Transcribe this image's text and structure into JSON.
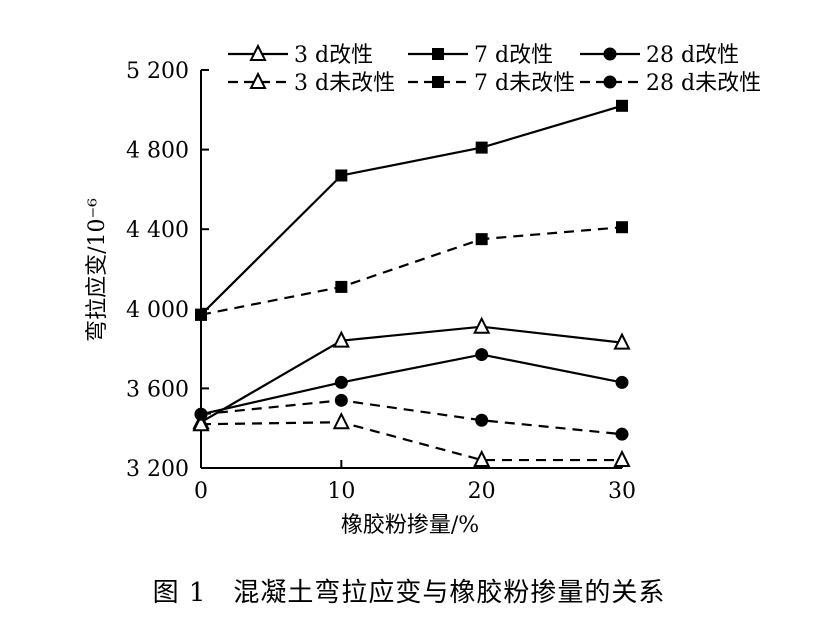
{
  "caption": "图 1　混凝土弯拉应变与橡胶粉掺量的关系",
  "chart_data": {
    "type": "line",
    "xlabel": "橡胶粉掺量/%",
    "ylabel": "弯拉应变/10⁻⁶",
    "x": [
      0,
      10,
      20,
      30
    ],
    "xticks": [
      "0",
      "10",
      "20",
      "30"
    ],
    "xlim": [
      0,
      30
    ],
    "yticks": [
      "3 200",
      "3 600",
      "4 000",
      "4 400",
      "4 800",
      "5 200"
    ],
    "ytick_values": [
      3200,
      3600,
      4000,
      4400,
      4800,
      5200
    ],
    "ylim": [
      3200,
      5200
    ],
    "grid": false,
    "legend_position": "top",
    "series": [
      {
        "name": "3 d改性",
        "values": [
          3430,
          3840,
          3910,
          3830
        ],
        "marker": "triangle",
        "dashed": false
      },
      {
        "name": "7 d改性",
        "values": [
          3970,
          4670,
          4810,
          5020
        ],
        "marker": "square",
        "dashed": false
      },
      {
        "name": "28 d改性",
        "values": [
          3470,
          3630,
          3770,
          3630
        ],
        "marker": "circle",
        "dashed": false
      },
      {
        "name": "3 d未改性",
        "values": [
          3420,
          3430,
          3240,
          3240
        ],
        "marker": "triangle",
        "dashed": true
      },
      {
        "name": "7 d未改性",
        "values": [
          3970,
          4110,
          4350,
          4410
        ],
        "marker": "square",
        "dashed": true
      },
      {
        "name": "28 d未改性",
        "values": [
          3470,
          3540,
          3440,
          3370
        ],
        "marker": "circle",
        "dashed": true
      }
    ],
    "colors": {
      "line": "#000000",
      "background": "#ffffff"
    }
  }
}
